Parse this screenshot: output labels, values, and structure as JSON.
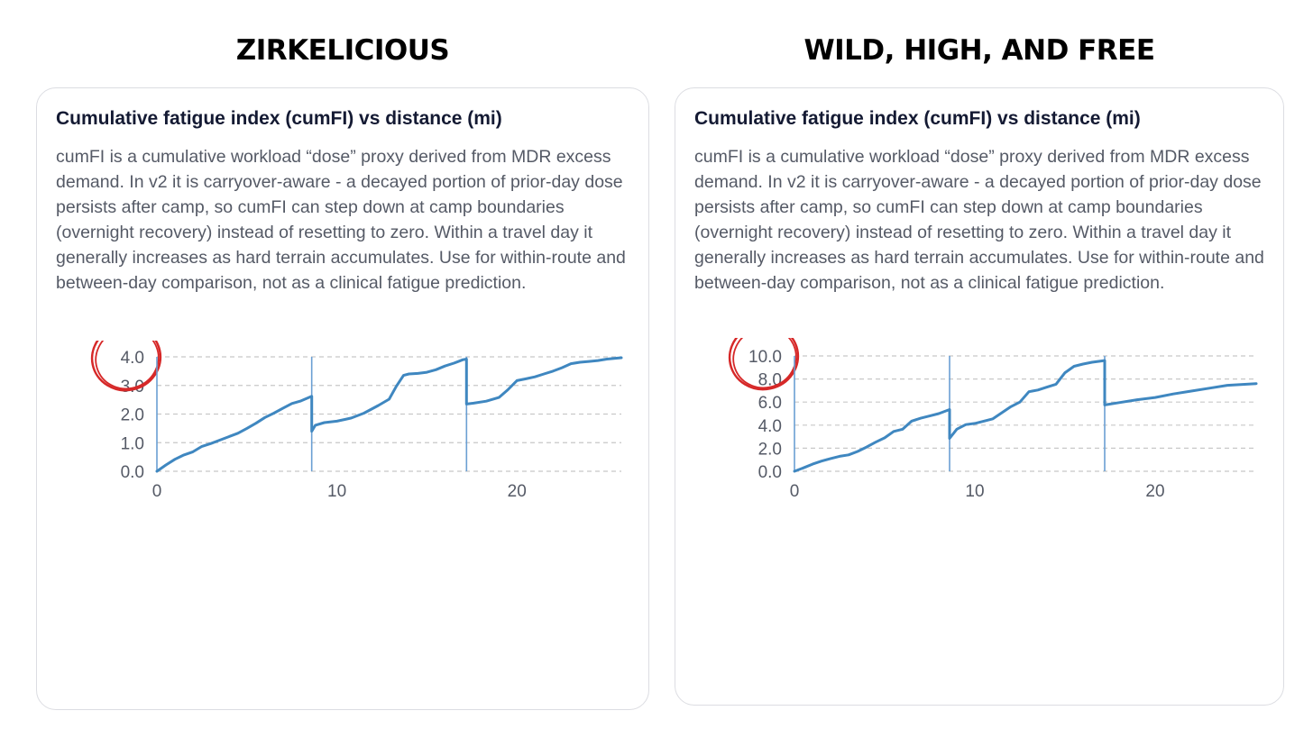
{
  "headings": [
    "ZIRKELICIOUS",
    "WILD, HIGH, AND FREE"
  ],
  "cards": [
    {
      "title": "Cumulative fatigue index (cumFI) vs distance (mi)",
      "description": "cumFI is a cumulative workload “dose” proxy derived from MDR excess demand. In v2 it is carryover-aware - a decayed portion of prior-day dose persists after camp, so cumFI can step down at camp boundaries (overnight recovery) instead of resetting to zero. Within a travel day it generally increases as hard terrain accumulates. Use for within-route and between-day comparison, not as a clinical fatigue prediction."
    },
    {
      "title": "Cumulative fatigue index (cumFI) vs distance (mi)",
      "description": "cumFI is a cumulative workload “dose” proxy derived from MDR excess demand. In v2 it is carryover-aware - a decayed portion of prior-day dose persists after camp, so cumFI can step down at camp boundaries (overnight recovery) instead of resetting to zero. Within a travel day it generally increases as hard terrain accumulates. Use for within-route and between-day comparison, not as a clinical fatigue prediction."
    }
  ],
  "colors": {
    "line": "#3f87c0",
    "camp_line": "#6a9fd3",
    "grid": "#c8c8c8",
    "highlight_circle": "#d62828"
  },
  "chart_data": [
    {
      "type": "line",
      "title": "",
      "xlabel": "",
      "ylabel": "",
      "xlim": [
        0,
        25.8
      ],
      "ylim": [
        0,
        4.0
      ],
      "x_ticks": [
        0,
        10,
        20
      ],
      "x_tick_labels": [
        "0",
        "10",
        "20"
      ],
      "y_ticks": [
        0,
        1,
        2,
        3,
        4
      ],
      "y_tick_labels": [
        "0.0",
        "1.0",
        "2.0",
        "3.0",
        "4.0"
      ],
      "grid": "horizontal-dashed",
      "highlighted_tick": "4.0",
      "camp_boundaries_mi": [
        0,
        8.6,
        17.2
      ],
      "series": [
        {
          "x": [
            0,
            0.5,
            1.0,
            1.5,
            2.0,
            2.5,
            3.0,
            3.5,
            4.0,
            4.5,
            5.0,
            5.5,
            6.0,
            6.5,
            7.0,
            7.5,
            8.0,
            8.6,
            8.6,
            8.8,
            9.3,
            10.0,
            10.8,
            11.5,
            12.3,
            12.9,
            13.3,
            13.7,
            14.0,
            14.5,
            15.0,
            15.5,
            16.0,
            16.5,
            17.0,
            17.2,
            17.2,
            17.6,
            18.3,
            19.0,
            19.5,
            20.0,
            20.5,
            21.0,
            21.5,
            22.0,
            22.5,
            23.0,
            23.5,
            24.0,
            24.5,
            25.0,
            25.8
          ],
          "y": [
            0,
            0.22,
            0.42,
            0.57,
            0.68,
            0.87,
            0.97,
            1.09,
            1.21,
            1.33,
            1.5,
            1.68,
            1.88,
            2.03,
            2.2,
            2.37,
            2.46,
            2.62,
            1.4,
            1.61,
            1.7,
            1.75,
            1.86,
            2.03,
            2.3,
            2.52,
            2.97,
            3.35,
            3.4,
            3.42,
            3.46,
            3.55,
            3.68,
            3.78,
            3.9,
            3.92,
            2.35,
            2.38,
            2.45,
            2.58,
            2.85,
            3.17,
            3.23,
            3.3,
            3.4,
            3.5,
            3.62,
            3.76,
            3.81,
            3.84,
            3.87,
            3.92,
            3.97
          ]
        }
      ]
    },
    {
      "type": "line",
      "title": "",
      "xlabel": "",
      "ylabel": "",
      "xlim": [
        0,
        25.6
      ],
      "ylim": [
        0,
        10.0
      ],
      "x_ticks": [
        0,
        10,
        20
      ],
      "x_tick_labels": [
        "0",
        "10",
        "20"
      ],
      "y_ticks": [
        0,
        2,
        4,
        6,
        8,
        10
      ],
      "y_tick_labels": [
        "0.0",
        "2.0",
        "4.0",
        "6.0",
        "8.0",
        "10.0"
      ],
      "grid": "horizontal-dashed",
      "highlighted_tick": "10.0",
      "camp_boundaries_mi": [
        0,
        8.6,
        17.2
      ],
      "series": [
        {
          "x": [
            0,
            0.5,
            1.0,
            1.5,
            2.0,
            2.5,
            3.0,
            3.5,
            4.0,
            4.5,
            5.0,
            5.5,
            6.0,
            6.5,
            7.0,
            7.5,
            8.0,
            8.6,
            8.6,
            9.0,
            9.5,
            10.0,
            11.0,
            12.0,
            12.5,
            13.0,
            13.5,
            14.0,
            14.5,
            15.0,
            15.5,
            16.0,
            16.5,
            17.2,
            17.2,
            18.0,
            19.0,
            20.0,
            21.0,
            22.0,
            23.0,
            24.0,
            25.6
          ],
          "y": [
            0,
            0.3,
            0.62,
            0.88,
            1.1,
            1.3,
            1.42,
            1.72,
            2.1,
            2.52,
            2.9,
            3.45,
            3.65,
            4.35,
            4.6,
            4.8,
            5.0,
            5.35,
            2.85,
            3.65,
            4.05,
            4.15,
            4.55,
            5.6,
            6.0,
            6.9,
            7.05,
            7.3,
            7.55,
            8.55,
            9.1,
            9.3,
            9.45,
            9.6,
            5.75,
            5.95,
            6.2,
            6.4,
            6.7,
            6.95,
            7.2,
            7.45,
            7.6
          ]
        }
      ]
    }
  ]
}
